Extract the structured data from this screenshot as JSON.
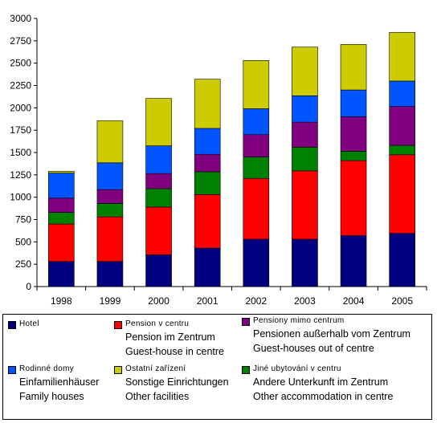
{
  "chart_data": {
    "type": "bar",
    "stacked": true,
    "categories": [
      "1998",
      "1999",
      "2000",
      "2001",
      "2002",
      "2003",
      "2004",
      "2005"
    ],
    "ylim": [
      0,
      3000
    ],
    "yticks": [
      "0",
      "250",
      "500",
      "750",
      "1000",
      "1250",
      "1500",
      "1750",
      "2000",
      "2250",
      "2500",
      "2750",
      "3000"
    ],
    "grid": false,
    "legend_position": "bottom",
    "series": [
      {
        "name": "Hotel",
        "color": "#000080",
        "values": [
          280,
          280,
          355,
          430,
          530,
          530,
          570,
          595
        ]
      },
      {
        "name": "Pension v centru",
        "color": "#ff0000",
        "values": [
          420,
          500,
          535,
          600,
          680,
          765,
          840,
          880
        ]
      },
      {
        "name": "Jiné ubytování v centru",
        "color": "#008000",
        "values": [
          130,
          150,
          205,
          255,
          240,
          265,
          105,
          105
        ]
      },
      {
        "name": "Pensiony mimo centrum",
        "color": "#800080",
        "values": [
          160,
          155,
          170,
          195,
          250,
          280,
          385,
          435
        ]
      },
      {
        "name": "Rodinné domy",
        "color": "#0055ff",
        "values": [
          280,
          300,
          310,
          290,
          290,
          295,
          300,
          285
        ]
      },
      {
        "name": "Ostatní zařízení",
        "color": "#cccc00",
        "values": [
          20,
          470,
          530,
          550,
          540,
          545,
          510,
          545
        ]
      }
    ]
  },
  "legend": {
    "hotel": {
      "label": "Hotel"
    },
    "pension_centre": {
      "label": "Pension v centru",
      "de": "Pension im Zentrum",
      "en": "Guest-house in centre"
    },
    "pension_out": {
      "label": "Pensiony mimo centrum",
      "de": "Pensionen außerhalb vom Zentrum",
      "en": "Guest-houses out of centre"
    },
    "family": {
      "label": "Rodinné domy",
      "de": "Einfamilienhäuser",
      "en": "Family houses"
    },
    "other": {
      "label": "Ostatní zařízení",
      "de": "Sonstige Einrichtungen",
      "en": "Other facilities"
    },
    "other_acc": {
      "label": "Jiné ubytování v centru",
      "de": "Andere Unterkunft  im Zentrum",
      "en": "Other accommodation in centre"
    }
  }
}
